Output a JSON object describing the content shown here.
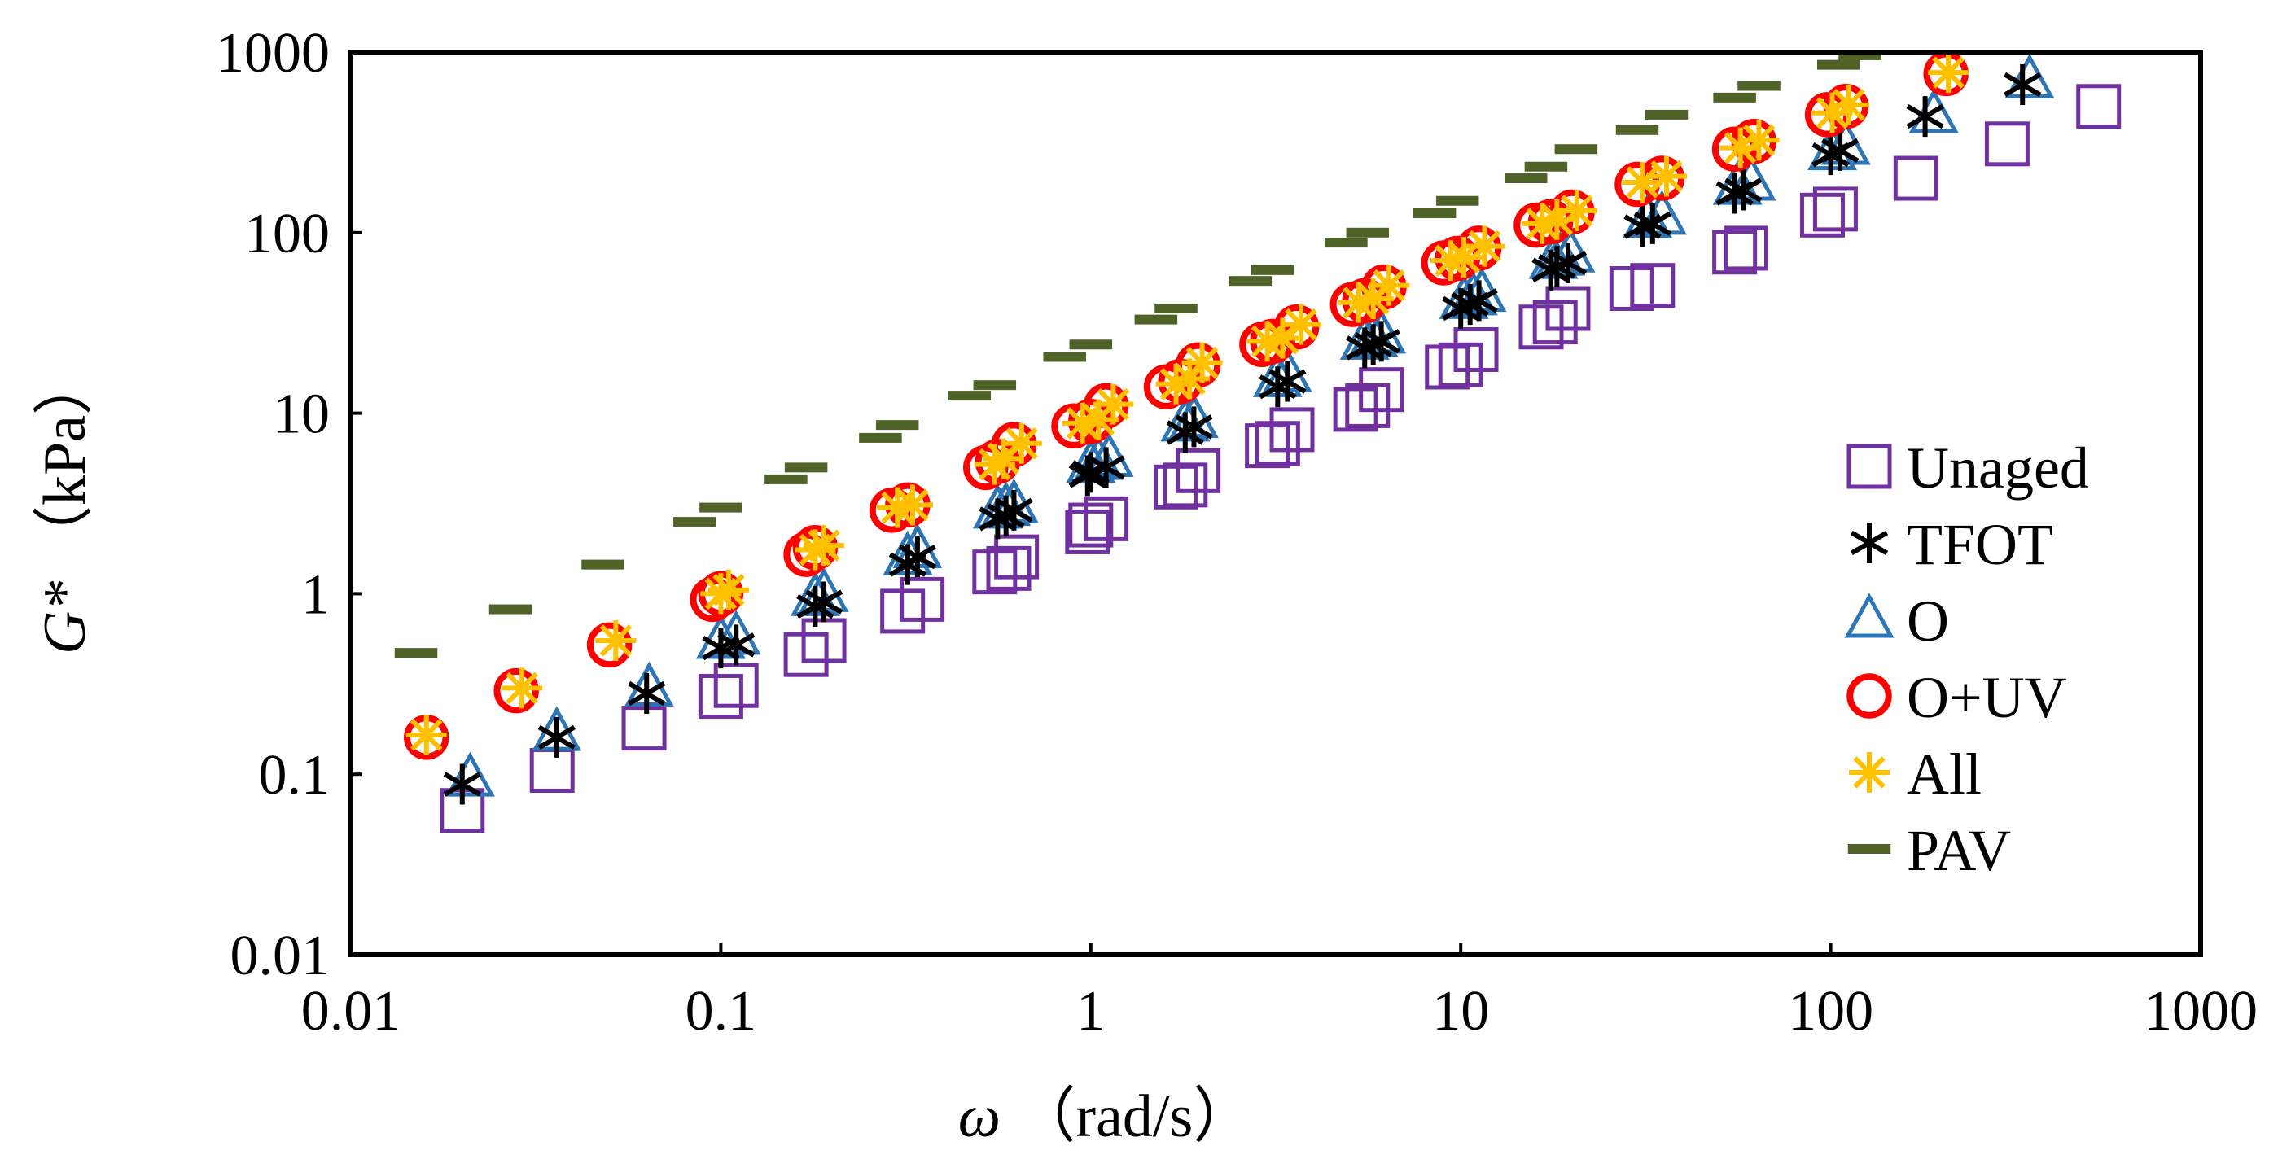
{
  "chart_data": {
    "type": "scatter",
    "title": "",
    "xscale": "log",
    "yscale": "log",
    "xlim": [
      0.01,
      1000
    ],
    "ylim": [
      0.01,
      1000
    ],
    "xticks": [
      "0.01",
      "0.1",
      "1",
      "10",
      "100",
      "1000"
    ],
    "yticks": [
      "0.01",
      "0.1",
      "1",
      "10",
      "100",
      "1000"
    ],
    "xlabel": {
      "symbol": "ω",
      "unit": "（rad/s）"
    },
    "ylabel": {
      "symbol": "G*",
      "unit": "（kPa）"
    },
    "legend_position": "right",
    "series": [
      {
        "name": "Unaged",
        "marker": "square",
        "color": "#7030A0",
        "points": [
          [
            0.02,
            0.063
          ],
          [
            0.035,
            0.105
          ],
          [
            0.062,
            0.18
          ],
          [
            0.1,
            0.27
          ],
          [
            0.11,
            0.31
          ],
          [
            0.17,
            0.46
          ],
          [
            0.19,
            0.55
          ],
          [
            0.31,
            0.8
          ],
          [
            0.35,
            0.93
          ],
          [
            0.55,
            1.32
          ],
          [
            0.6,
            1.38
          ],
          [
            0.63,
            1.6
          ],
          [
            0.98,
            2.2
          ],
          [
            1.0,
            2.4
          ],
          [
            1.1,
            2.6
          ],
          [
            1.7,
            3.9
          ],
          [
            1.8,
            4.0
          ],
          [
            1.95,
            4.8
          ],
          [
            3.0,
            6.6
          ],
          [
            3.2,
            6.8
          ],
          [
            3.5,
            8.1
          ],
          [
            5.2,
            10.5
          ],
          [
            5.6,
            11.0
          ],
          [
            6.1,
            13.5
          ],
          [
            9.2,
            18
          ],
          [
            10.0,
            18.5
          ],
          [
            11.0,
            22.5
          ],
          [
            16.5,
            30
          ],
          [
            18.0,
            32
          ],
          [
            19.5,
            38
          ],
          [
            29,
            49
          ],
          [
            33,
            51
          ],
          [
            55,
            78
          ],
          [
            59,
            82
          ],
          [
            95,
            125
          ],
          [
            103,
            135
          ],
          [
            170,
            200
          ],
          [
            300,
            310
          ],
          [
            530,
            500
          ]
        ]
      },
      {
        "name": "TFOT",
        "marker": "asterisk",
        "color": "#000000",
        "points": [
          [
            0.02,
            0.088
          ],
          [
            0.036,
            0.16
          ],
          [
            0.063,
            0.28
          ],
          [
            0.1,
            0.5
          ],
          [
            0.11,
            0.52
          ],
          [
            0.18,
            0.85
          ],
          [
            0.19,
            0.9
          ],
          [
            0.32,
            1.45
          ],
          [
            0.34,
            1.6
          ],
          [
            0.56,
            2.6
          ],
          [
            0.59,
            2.7
          ],
          [
            0.62,
            2.9
          ],
          [
            0.98,
            4.5
          ],
          [
            1.0,
            4.7
          ],
          [
            1.1,
            5.0
          ],
          [
            1.8,
            7.8
          ],
          [
            1.9,
            8.4
          ],
          [
            3.2,
            14
          ],
          [
            3.4,
            15
          ],
          [
            5.5,
            23
          ],
          [
            5.8,
            24
          ],
          [
            6.1,
            25
          ],
          [
            10,
            38
          ],
          [
            10.6,
            40
          ],
          [
            11.2,
            42
          ],
          [
            17.5,
            62
          ],
          [
            18.2,
            65
          ],
          [
            19.5,
            68
          ],
          [
            31,
            108
          ],
          [
            33,
            112
          ],
          [
            55,
            165
          ],
          [
            58,
            172
          ],
          [
            100,
            270
          ],
          [
            106,
            285
          ],
          [
            180,
            440
          ],
          [
            330,
            660
          ]
        ]
      },
      {
        "name": "O",
        "marker": "triangle",
        "color": "#2E75B6",
        "points": [
          [
            0.021,
            0.095
          ],
          [
            0.036,
            0.17
          ],
          [
            0.064,
            0.3
          ],
          [
            0.1,
            0.55
          ],
          [
            0.11,
            0.58
          ],
          [
            0.18,
            0.95
          ],
          [
            0.19,
            1.0
          ],
          [
            0.32,
            1.6
          ],
          [
            0.34,
            1.75
          ],
          [
            0.56,
            2.9
          ],
          [
            0.59,
            3.0
          ],
          [
            0.62,
            3.1
          ],
          [
            1.0,
            5.2
          ],
          [
            1.05,
            5.4
          ],
          [
            1.12,
            5.6
          ],
          [
            1.8,
            8.8
          ],
          [
            1.9,
            9.2
          ],
          [
            3.2,
            15.5
          ],
          [
            3.4,
            16.5
          ],
          [
            5.5,
            25
          ],
          [
            5.8,
            26
          ],
          [
            6.1,
            27
          ],
          [
            10.2,
            42
          ],
          [
            10.8,
            44
          ],
          [
            11.4,
            46
          ],
          [
            17.8,
            70
          ],
          [
            18.6,
            73
          ],
          [
            19.8,
            76
          ],
          [
            32,
            118
          ],
          [
            35,
            123
          ],
          [
            56,
            180
          ],
          [
            61,
            190
          ],
          [
            101,
            280
          ],
          [
            110,
            300
          ],
          [
            190,
            450
          ],
          [
            345,
            700
          ]
        ]
      },
      {
        "name": "O+UV",
        "marker": "circle",
        "color": "#FF0000",
        "points": [
          [
            0.016,
            0.16
          ],
          [
            0.028,
            0.29
          ],
          [
            0.05,
            0.52
          ],
          [
            0.095,
            0.93
          ],
          [
            0.1,
            1.0
          ],
          [
            0.17,
            1.65
          ],
          [
            0.18,
            1.8
          ],
          [
            0.29,
            2.9
          ],
          [
            0.32,
            3.1
          ],
          [
            0.52,
            5.0
          ],
          [
            0.56,
            5.4
          ],
          [
            0.62,
            6.7
          ],
          [
            0.9,
            8.5
          ],
          [
            1.0,
            9.0
          ],
          [
            1.1,
            11.0
          ],
          [
            1.6,
            14
          ],
          [
            1.75,
            15
          ],
          [
            1.95,
            18.5
          ],
          [
            2.9,
            24
          ],
          [
            3.1,
            25
          ],
          [
            3.6,
            30
          ],
          [
            5.1,
            40
          ],
          [
            5.5,
            42
          ],
          [
            6.2,
            50
          ],
          [
            9.0,
            68
          ],
          [
            9.8,
            72
          ],
          [
            11.2,
            82
          ],
          [
            16,
            110
          ],
          [
            17.5,
            115
          ],
          [
            20,
            130
          ],
          [
            30,
            185
          ],
          [
            35,
            200
          ],
          [
            55,
            290
          ],
          [
            62,
            320
          ],
          [
            98,
            450
          ],
          [
            110,
            500
          ],
          [
            205,
            760
          ]
        ]
      },
      {
        "name": "All",
        "marker": "star",
        "color": "#FFC000",
        "points": [
          [
            0.016,
            0.165
          ],
          [
            0.029,
            0.3
          ],
          [
            0.052,
            0.55
          ],
          [
            0.1,
            1.0
          ],
          [
            0.105,
            1.05
          ],
          [
            0.18,
            1.75
          ],
          [
            0.19,
            1.85
          ],
          [
            0.3,
            3.0
          ],
          [
            0.33,
            3.1
          ],
          [
            0.55,
            5.2
          ],
          [
            0.58,
            5.6
          ],
          [
            0.65,
            6.8
          ],
          [
            0.95,
            8.8
          ],
          [
            1.05,
            9.2
          ],
          [
            1.15,
            11.2
          ],
          [
            1.7,
            14.5
          ],
          [
            1.85,
            15.5
          ],
          [
            2.0,
            19
          ],
          [
            3.0,
            25
          ],
          [
            3.3,
            26
          ],
          [
            3.7,
            31
          ],
          [
            5.3,
            41
          ],
          [
            5.8,
            43
          ],
          [
            6.4,
            51
          ],
          [
            9.4,
            70
          ],
          [
            10.2,
            73
          ],
          [
            11.6,
            84
          ],
          [
            16.6,
            112
          ],
          [
            18.2,
            118
          ],
          [
            20.6,
            132
          ],
          [
            31,
            190
          ],
          [
            36,
            205
          ],
          [
            57,
            295
          ],
          [
            64,
            325
          ],
          [
            101,
            460
          ],
          [
            112,
            510
          ],
          [
            208,
            770
          ]
        ]
      },
      {
        "name": "PAV",
        "marker": "dash",
        "color": "#4F6228",
        "points": [
          [
            0.015,
            0.47
          ],
          [
            0.027,
            0.82
          ],
          [
            0.048,
            1.45
          ],
          [
            0.085,
            2.5
          ],
          [
            0.1,
            3.0
          ],
          [
            0.15,
            4.3
          ],
          [
            0.17,
            5.0
          ],
          [
            0.27,
            7.3
          ],
          [
            0.3,
            8.6
          ],
          [
            0.47,
            12.5
          ],
          [
            0.55,
            14.3
          ],
          [
            0.85,
            20.5
          ],
          [
            1.0,
            24
          ],
          [
            1.5,
            33
          ],
          [
            1.7,
            38
          ],
          [
            2.7,
            54
          ],
          [
            3.1,
            62
          ],
          [
            4.9,
            88
          ],
          [
            5.6,
            100
          ],
          [
            8.5,
            128
          ],
          [
            9.8,
            150
          ],
          [
            15,
            200
          ],
          [
            17,
            232
          ],
          [
            20.5,
            290
          ],
          [
            30,
            370
          ],
          [
            36,
            450
          ],
          [
            55,
            560
          ],
          [
            64,
            650
          ],
          [
            105,
            850
          ],
          [
            120,
            960
          ]
        ]
      }
    ]
  }
}
